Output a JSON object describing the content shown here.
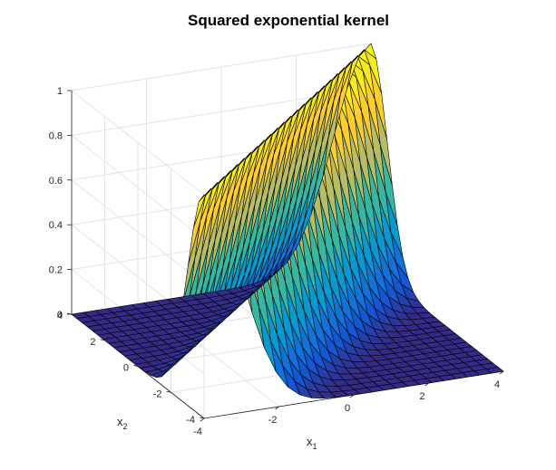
{
  "chart_data": {
    "type": "surface",
    "title": "Squared exponential kernel",
    "xlabel": "x",
    "xlabel_sub": "1",
    "ylabel": "x",
    "ylabel_sub": "2",
    "zlabel": "",
    "x": {
      "min": -4,
      "max": 4,
      "ticks": [
        -4,
        -2,
        0,
        2,
        4
      ],
      "tick_labels": [
        "-4",
        "-2",
        "0",
        "2",
        "4"
      ]
    },
    "y": {
      "min": -4,
      "max": 4,
      "ticks": [
        -4,
        -2,
        0,
        2,
        4
      ],
      "tick_labels": [
        "-4",
        "-2",
        "0",
        "2",
        "4"
      ]
    },
    "z": {
      "min": 0,
      "max": 1,
      "ticks": [
        0,
        0.2,
        0.4,
        0.6,
        0.8,
        1
      ],
      "tick_labels": [
        "0",
        "0.2",
        "0.4",
        "0.6",
        "0.8",
        "1"
      ]
    },
    "function": "k(x1, x2) = exp(-(x1 - x2)^2 / 2)",
    "grid": true,
    "colormap": "parula",
    "mesh_lines": "#000000",
    "mesh_resolution": 26
  }
}
